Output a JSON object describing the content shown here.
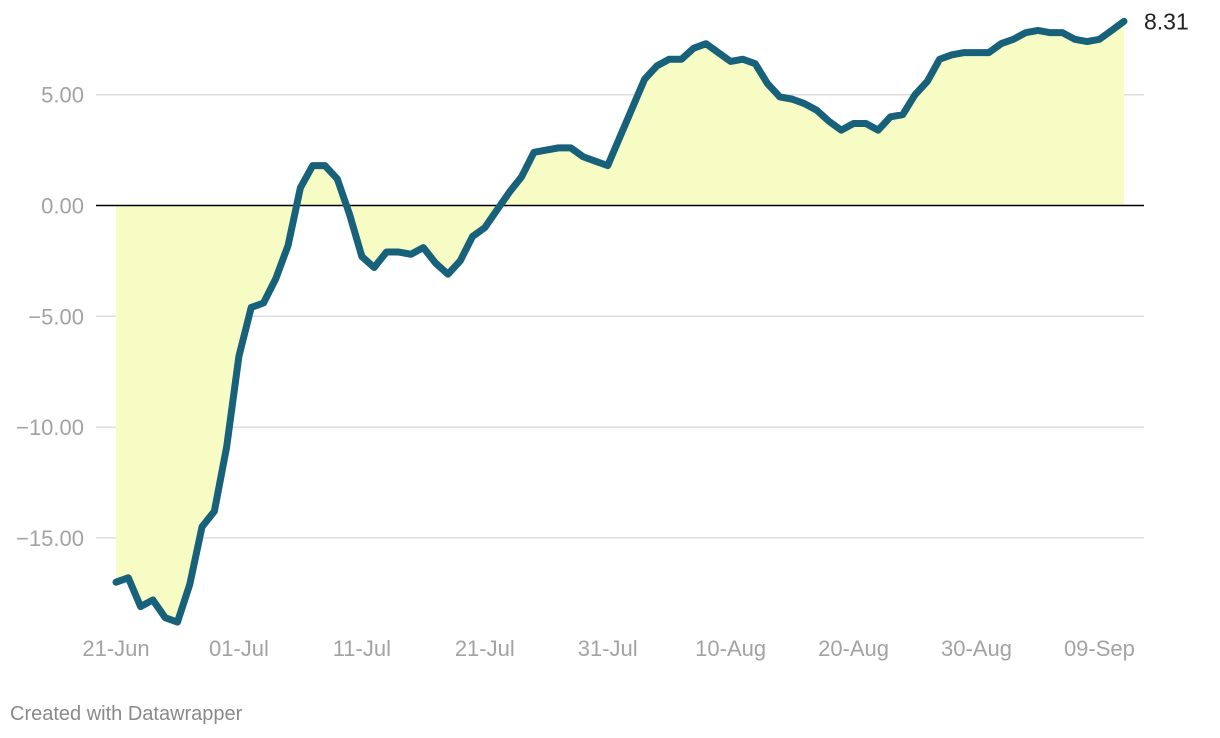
{
  "chart_data": {
    "type": "area",
    "title": "",
    "xlabel": "",
    "ylabel": "",
    "x_start": "21-Jun",
    "x_end": "12-Sep",
    "x_ticks": [
      "21-Jun",
      "01-Jul",
      "11-Jul",
      "21-Jul",
      "31-Jul",
      "10-Aug",
      "20-Aug",
      "30-Aug",
      "09-Sep"
    ],
    "y_ticks": [
      "−15.00",
      "−10.00",
      "−5.00",
      "0.00",
      "5.00"
    ],
    "y_tick_values": [
      -15,
      -10,
      -5,
      0,
      5
    ],
    "ylim": [
      -19,
      8.5
    ],
    "end_label": "8.31",
    "grid": true,
    "values": [
      -17.0,
      -16.8,
      -18.1,
      -17.8,
      -18.6,
      -18.8,
      -17.1,
      -14.5,
      -13.8,
      -10.9,
      -6.8,
      -4.6,
      -4.4,
      -3.3,
      -1.8,
      0.8,
      1.8,
      1.8,
      1.2,
      -0.4,
      -2.3,
      -2.8,
      -2.1,
      -2.1,
      -2.2,
      -1.9,
      -2.6,
      -3.1,
      -2.5,
      -1.4,
      -1.0,
      -0.2,
      0.6,
      1.3,
      2.4,
      2.5,
      2.6,
      2.6,
      2.2,
      2.0,
      1.8,
      3.1,
      4.4,
      5.7,
      6.3,
      6.6,
      6.6,
      7.1,
      7.3,
      6.9,
      6.5,
      6.6,
      6.4,
      5.5,
      4.9,
      4.8,
      4.6,
      4.3,
      3.8,
      3.4,
      3.7,
      3.7,
      3.4,
      4.0,
      4.1,
      5.0,
      5.6,
      6.6,
      6.8,
      6.9,
      6.9,
      6.9,
      7.3,
      7.5,
      7.8,
      7.9,
      7.8,
      7.8,
      7.5,
      7.4,
      7.5,
      7.9,
      8.31
    ],
    "colors": {
      "line": "#17617a",
      "area": "#f7fcc4",
      "grid": "#dddddd",
      "zero_line": "#000000",
      "tick_text": "#a3a3a3"
    }
  },
  "footer": {
    "credit": "Created with Datawrapper"
  }
}
